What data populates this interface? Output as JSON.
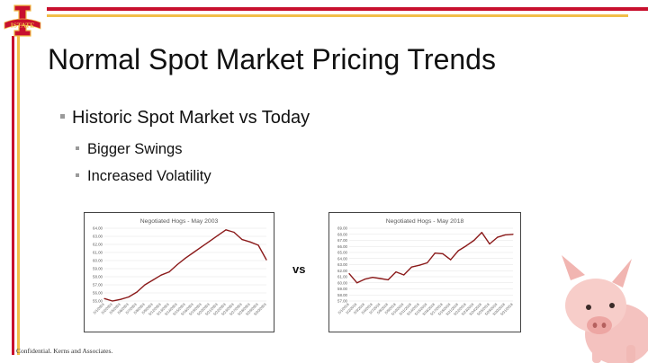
{
  "slide": {
    "title": "Normal Spot Market Pricing Trends",
    "logo_text": "ISTATE",
    "bullet_main": "Historic Spot Market vs Today",
    "sub_bullets": [
      "Bigger Swings",
      "Increased Volatility"
    ],
    "vs_label": "vs",
    "footer": "Confidential.  Kerns and Associates."
  },
  "colors": {
    "red": "#c8102e",
    "gold": "#f1be48",
    "line": "#8b1a1a",
    "grid": "#e3e3e3"
  },
  "chart_data": [
    {
      "type": "line",
      "title": "Negotiated Hogs - May 2003",
      "ylim": [
        55,
        64
      ],
      "yticks": [
        "64.00",
        "63.00",
        "62.00",
        "61.00",
        "60.00",
        "59.00",
        "58.00",
        "57.00",
        "56.00",
        "55.00"
      ],
      "categories": [
        "5/1/2003",
        "5/2/2003",
        "5/5/2003",
        "5/6/2003",
        "5/7/2003",
        "5/8/2003",
        "5/9/2003",
        "5/12/2003",
        "5/13/2003",
        "5/14/2003",
        "5/15/2003",
        "5/16/2003",
        "5/19/2003",
        "5/20/2003",
        "5/21/2003",
        "5/22/2003",
        "5/23/2003",
        "5/27/2003",
        "5/28/2003",
        "5/29/2003",
        "5/30/2003"
      ],
      "series": [
        {
          "name": "Negotiated Hogs",
          "values": [
            55.3,
            55.0,
            55.2,
            55.5,
            56.1,
            57.0,
            57.6,
            58.2,
            58.6,
            59.5,
            60.3,
            61.0,
            61.7,
            62.4,
            63.1,
            63.8,
            63.5,
            62.6,
            62.3,
            61.9,
            60.1
          ]
        }
      ]
    },
    {
      "type": "line",
      "title": "Negotiated Hogs - May 2018",
      "ylim": [
        57,
        69
      ],
      "yticks": [
        "69.00",
        "68.00",
        "67.00",
        "66.00",
        "65.00",
        "64.00",
        "63.00",
        "62.00",
        "61.00",
        "60.00",
        "59.00",
        "58.00",
        "57.00"
      ],
      "categories": [
        "5/1/2018",
        "5/2/2018",
        "5/3/2018",
        "5/4/2018",
        "5/7/2018",
        "5/8/2018",
        "5/9/2018",
        "5/10/2018",
        "5/11/2018",
        "5/14/2018",
        "5/15/2018",
        "5/16/2018",
        "5/17/2018",
        "5/18/2018",
        "5/21/2018",
        "5/22/2018",
        "5/23/2018",
        "5/24/2018",
        "5/25/2018",
        "5/29/2018",
        "5/30/2018",
        "5/31/2018"
      ],
      "series": [
        {
          "name": "Negotiated Hogs",
          "values": [
            61.5,
            60.0,
            60.6,
            60.9,
            60.7,
            60.5,
            61.8,
            61.3,
            62.6,
            62.9,
            63.3,
            64.9,
            64.8,
            63.8,
            65.3,
            66.1,
            67.0,
            68.3,
            66.4,
            67.5,
            67.9,
            68.0
          ]
        }
      ]
    }
  ]
}
